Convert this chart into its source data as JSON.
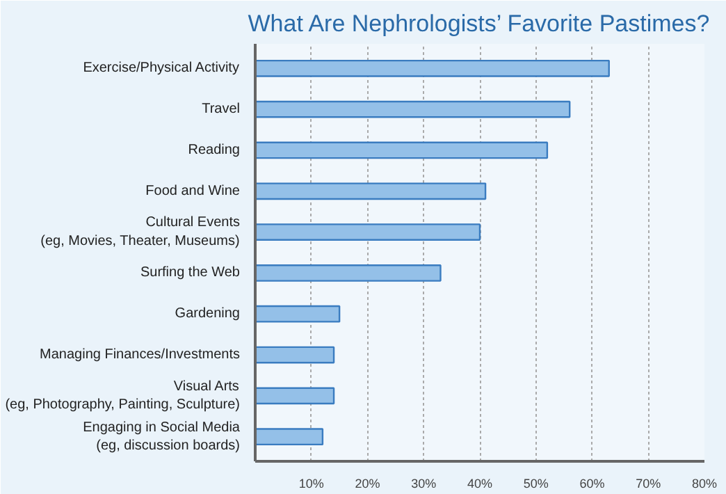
{
  "chart_data": {
    "type": "bar",
    "orientation": "horizontal",
    "title": "What Are Nephrologists’ Favorite Pastimes?",
    "categories": [
      "Exercise/Physical Activity",
      "Travel",
      "Reading",
      "Food and Wine",
      "Cultural Events\n(eg, Movies, Theater, Museums)",
      "Surfing the Web",
      "Gardening",
      "Managing Finances/Investments",
      "Visual Arts\n(eg, Photography, Painting, Sculpture)",
      "Engaging in Social Media\n(eg, discussion boards)"
    ],
    "values": [
      63,
      56,
      52,
      41,
      40,
      33,
      15,
      14,
      14,
      12
    ],
    "color": "#94c0e8",
    "xlim": [
      0,
      80
    ],
    "xticks": [
      {
        "value": 10,
        "label": "10%"
      },
      {
        "value": 20,
        "label": "20%"
      },
      {
        "value": 30,
        "label": "30%"
      },
      {
        "value": 40,
        "label": "40%"
      },
      {
        "value": 50,
        "label": "50%"
      },
      {
        "value": 60,
        "label": "60%"
      },
      {
        "value": 70,
        "label": "70%"
      },
      {
        "value": 80,
        "label": "80%"
      }
    ],
    "grid": "x"
  }
}
